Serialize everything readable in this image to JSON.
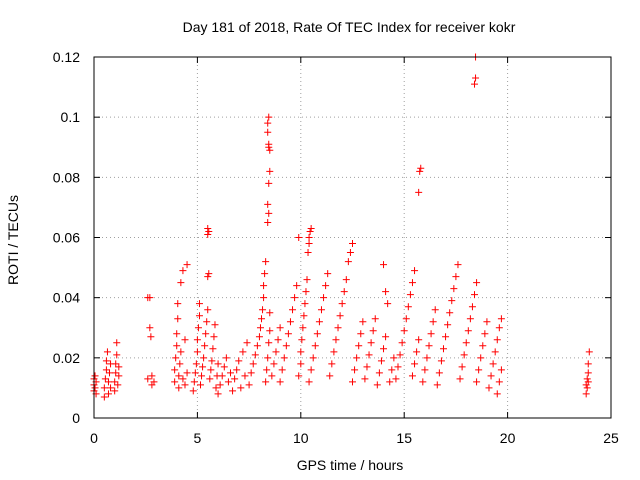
{
  "chart_data": {
    "type": "scatter",
    "title": "Day 181 of 2018, Rate Of TEC Index for receiver kokr",
    "xlabel": "GPS time / hours",
    "ylabel": "ROTI / TECUs",
    "xlim": [
      0,
      25
    ],
    "ylim": [
      0,
      0.12
    ],
    "xticks": [
      0,
      5,
      10,
      15,
      20,
      25
    ],
    "xtick_labels": [
      "0",
      "5",
      "10",
      "15",
      "20",
      "25"
    ],
    "yticks": [
      0,
      0.02,
      0.04,
      0.06,
      0.08,
      0.1,
      0.12
    ],
    "ytick_labels": [
      "0",
      "0.02",
      "0.04",
      "0.06",
      "0.08",
      "0.1",
      "0.12"
    ],
    "grid": true,
    "marker": "+",
    "colors": {
      "series": "#ff0000",
      "frame": "#000000",
      "grid": "#a0a0a0"
    },
    "series": [
      {
        "name": "ROTI",
        "points": [
          [
            0.0,
            0.009
          ],
          [
            0.0,
            0.011
          ],
          [
            0.0,
            0.013
          ],
          [
            0.05,
            0.01
          ],
          [
            0.05,
            0.014
          ],
          [
            0.1,
            0.008
          ],
          [
            0.1,
            0.012
          ],
          [
            0.5,
            0.007
          ],
          [
            0.5,
            0.01
          ],
          [
            0.55,
            0.013
          ],
          [
            0.6,
            0.016
          ],
          [
            0.6,
            0.019
          ],
          [
            0.65,
            0.022
          ],
          [
            0.7,
            0.008
          ],
          [
            0.7,
            0.012
          ],
          [
            0.75,
            0.015
          ],
          [
            0.8,
            0.01
          ],
          [
            0.8,
            0.018
          ],
          [
            1.0,
            0.009
          ],
          [
            1.0,
            0.012
          ],
          [
            1.05,
            0.015
          ],
          [
            1.05,
            0.018
          ],
          [
            1.1,
            0.021
          ],
          [
            1.1,
            0.025
          ],
          [
            1.15,
            0.011
          ],
          [
            1.2,
            0.014
          ],
          [
            1.2,
            0.017
          ],
          [
            2.6,
            0.04
          ],
          [
            2.7,
            0.04
          ],
          [
            2.7,
            0.03
          ],
          [
            2.75,
            0.027
          ],
          [
            2.8,
            0.014
          ],
          [
            2.8,
            0.011
          ],
          [
            2.9,
            0.012
          ],
          [
            2.6,
            0.013
          ],
          [
            3.9,
            0.012
          ],
          [
            3.9,
            0.016
          ],
          [
            3.95,
            0.02
          ],
          [
            4.0,
            0.024
          ],
          [
            4.0,
            0.028
          ],
          [
            4.05,
            0.033
          ],
          [
            4.05,
            0.038
          ],
          [
            4.1,
            0.01
          ],
          [
            4.1,
            0.014
          ],
          [
            4.15,
            0.018
          ],
          [
            4.2,
            0.022
          ],
          [
            4.2,
            0.045
          ],
          [
            4.3,
            0.013
          ],
          [
            4.3,
            0.049
          ],
          [
            4.4,
            0.011
          ],
          [
            4.5,
            0.051
          ],
          [
            4.4,
            0.026
          ],
          [
            4.5,
            0.015
          ],
          [
            4.8,
            0.009
          ],
          [
            4.85,
            0.012
          ],
          [
            4.9,
            0.015
          ],
          [
            4.95,
            0.018
          ],
          [
            5.0,
            0.022
          ],
          [
            5.0,
            0.026
          ],
          [
            5.05,
            0.03
          ],
          [
            5.1,
            0.034
          ],
          [
            5.1,
            0.038
          ],
          [
            5.15,
            0.011
          ],
          [
            5.2,
            0.014
          ],
          [
            5.25,
            0.017
          ],
          [
            5.3,
            0.02
          ],
          [
            5.35,
            0.024
          ],
          [
            5.4,
            0.028
          ],
          [
            5.45,
            0.032
          ],
          [
            5.5,
            0.036
          ],
          [
            5.5,
            0.047
          ],
          [
            5.55,
            0.048
          ],
          [
            5.6,
            0.013
          ],
          [
            5.65,
            0.016
          ],
          [
            5.7,
            0.019
          ],
          [
            5.75,
            0.023
          ],
          [
            5.8,
            0.027
          ],
          [
            5.85,
            0.031
          ],
          [
            5.9,
            0.01
          ],
          [
            5.95,
            0.014
          ],
          [
            6.0,
            0.018
          ],
          [
            5.5,
            0.061
          ],
          [
            5.5,
            0.063
          ],
          [
            5.55,
            0.062
          ],
          [
            6.0,
            0.008
          ],
          [
            6.1,
            0.011
          ],
          [
            6.2,
            0.014
          ],
          [
            6.3,
            0.017
          ],
          [
            6.4,
            0.02
          ],
          [
            6.5,
            0.012
          ],
          [
            6.6,
            0.015
          ],
          [
            6.7,
            0.009
          ],
          [
            6.8,
            0.013
          ],
          [
            6.9,
            0.016
          ],
          [
            7.0,
            0.019
          ],
          [
            7.1,
            0.01
          ],
          [
            7.2,
            0.022
          ],
          [
            7.3,
            0.014
          ],
          [
            7.4,
            0.025
          ],
          [
            7.5,
            0.011
          ],
          [
            7.6,
            0.015
          ],
          [
            7.7,
            0.018
          ],
          [
            7.8,
            0.021
          ],
          [
            7.9,
            0.024
          ],
          [
            8.0,
            0.027
          ],
          [
            8.05,
            0.03
          ],
          [
            8.1,
            0.033
          ],
          [
            8.15,
            0.036
          ],
          [
            8.2,
            0.04
          ],
          [
            8.2,
            0.044
          ],
          [
            8.25,
            0.048
          ],
          [
            8.3,
            0.052
          ],
          [
            8.3,
            0.012
          ],
          [
            8.35,
            0.016
          ],
          [
            8.4,
            0.02
          ],
          [
            8.45,
            0.025
          ],
          [
            8.5,
            0.029
          ],
          [
            8.5,
            0.035
          ],
          [
            8.4,
            0.065
          ],
          [
            8.45,
            0.068
          ],
          [
            8.4,
            0.071
          ],
          [
            8.45,
            0.078
          ],
          [
            8.5,
            0.082
          ],
          [
            8.5,
            0.089
          ],
          [
            8.45,
            0.09
          ],
          [
            8.45,
            0.091
          ],
          [
            8.4,
            0.095
          ],
          [
            8.4,
            0.098
          ],
          [
            8.45,
            0.1
          ],
          [
            8.6,
            0.014
          ],
          [
            8.7,
            0.018
          ],
          [
            8.8,
            0.022
          ],
          [
            8.9,
            0.026
          ],
          [
            9.0,
            0.03
          ],
          [
            9.0,
            0.012
          ],
          [
            9.1,
            0.016
          ],
          [
            9.2,
            0.02
          ],
          [
            9.3,
            0.024
          ],
          [
            9.4,
            0.028
          ],
          [
            9.5,
            0.032
          ],
          [
            9.6,
            0.036
          ],
          [
            9.7,
            0.04
          ],
          [
            9.8,
            0.044
          ],
          [
            9.9,
            0.06
          ],
          [
            9.9,
            0.014
          ],
          [
            10.0,
            0.018
          ],
          [
            10.0,
            0.022
          ],
          [
            10.05,
            0.026
          ],
          [
            10.1,
            0.03
          ],
          [
            10.15,
            0.034
          ],
          [
            10.2,
            0.038
          ],
          [
            10.25,
            0.042
          ],
          [
            10.3,
            0.046
          ],
          [
            10.35,
            0.055
          ],
          [
            10.4,
            0.058
          ],
          [
            10.4,
            0.06
          ],
          [
            10.45,
            0.062
          ],
          [
            10.5,
            0.063
          ],
          [
            10.4,
            0.012
          ],
          [
            10.5,
            0.016
          ],
          [
            10.6,
            0.02
          ],
          [
            10.7,
            0.024
          ],
          [
            10.8,
            0.028
          ],
          [
            10.9,
            0.032
          ],
          [
            11.0,
            0.036
          ],
          [
            11.1,
            0.04
          ],
          [
            11.2,
            0.044
          ],
          [
            11.3,
            0.048
          ],
          [
            11.4,
            0.014
          ],
          [
            11.5,
            0.018
          ],
          [
            11.6,
            0.022
          ],
          [
            11.7,
            0.026
          ],
          [
            11.8,
            0.03
          ],
          [
            11.9,
            0.034
          ],
          [
            12.0,
            0.038
          ],
          [
            12.1,
            0.042
          ],
          [
            12.2,
            0.046
          ],
          [
            12.3,
            0.052
          ],
          [
            12.4,
            0.055
          ],
          [
            12.5,
            0.058
          ],
          [
            12.5,
            0.012
          ],
          [
            12.6,
            0.016
          ],
          [
            12.7,
            0.02
          ],
          [
            12.8,
            0.024
          ],
          [
            12.9,
            0.028
          ],
          [
            13.0,
            0.032
          ],
          [
            13.1,
            0.013
          ],
          [
            13.2,
            0.017
          ],
          [
            13.3,
            0.021
          ],
          [
            13.4,
            0.025
          ],
          [
            13.5,
            0.029
          ],
          [
            13.6,
            0.033
          ],
          [
            13.7,
            0.011
          ],
          [
            13.8,
            0.015
          ],
          [
            13.9,
            0.019
          ],
          [
            14.0,
            0.023
          ],
          [
            14.1,
            0.027
          ],
          [
            14.0,
            0.051
          ],
          [
            14.1,
            0.042
          ],
          [
            14.2,
            0.038
          ],
          [
            14.3,
            0.012
          ],
          [
            14.4,
            0.016
          ],
          [
            14.5,
            0.02
          ],
          [
            14.6,
            0.013
          ],
          [
            14.7,
            0.017
          ],
          [
            14.8,
            0.021
          ],
          [
            14.9,
            0.025
          ],
          [
            15.0,
            0.029
          ],
          [
            15.1,
            0.033
          ],
          [
            15.2,
            0.037
          ],
          [
            15.3,
            0.041
          ],
          [
            15.4,
            0.045
          ],
          [
            15.5,
            0.049
          ],
          [
            15.4,
            0.014
          ],
          [
            15.5,
            0.018
          ],
          [
            15.6,
            0.022
          ],
          [
            15.7,
            0.026
          ],
          [
            15.7,
            0.075
          ],
          [
            15.75,
            0.082
          ],
          [
            15.8,
            0.083
          ],
          [
            15.9,
            0.012
          ],
          [
            16.0,
            0.016
          ],
          [
            16.1,
            0.02
          ],
          [
            16.2,
            0.024
          ],
          [
            16.3,
            0.028
          ],
          [
            16.4,
            0.032
          ],
          [
            16.5,
            0.036
          ],
          [
            16.6,
            0.011
          ],
          [
            16.7,
            0.015
          ],
          [
            16.8,
            0.019
          ],
          [
            16.9,
            0.023
          ],
          [
            17.0,
            0.027
          ],
          [
            17.1,
            0.031
          ],
          [
            17.2,
            0.035
          ],
          [
            17.3,
            0.039
          ],
          [
            17.4,
            0.043
          ],
          [
            17.5,
            0.047
          ],
          [
            17.6,
            0.051
          ],
          [
            17.7,
            0.013
          ],
          [
            17.8,
            0.017
          ],
          [
            17.9,
            0.021
          ],
          [
            18.0,
            0.025
          ],
          [
            18.1,
            0.029
          ],
          [
            18.2,
            0.033
          ],
          [
            18.3,
            0.037
          ],
          [
            18.4,
            0.041
          ],
          [
            18.5,
            0.045
          ],
          [
            18.5,
            0.012
          ],
          [
            18.6,
            0.016
          ],
          [
            18.7,
            0.02
          ],
          [
            18.8,
            0.024
          ],
          [
            18.9,
            0.028
          ],
          [
            19.0,
            0.032
          ],
          [
            18.4,
            0.111
          ],
          [
            18.45,
            0.113
          ],
          [
            18.45,
            0.12
          ],
          [
            19.1,
            0.01
          ],
          [
            19.2,
            0.014
          ],
          [
            19.3,
            0.018
          ],
          [
            19.4,
            0.022
          ],
          [
            19.5,
            0.026
          ],
          [
            19.6,
            0.03
          ],
          [
            19.7,
            0.033
          ],
          [
            19.6,
            0.012
          ],
          [
            19.7,
            0.016
          ],
          [
            19.5,
            0.008
          ],
          [
            23.8,
            0.008
          ],
          [
            23.8,
            0.011
          ],
          [
            23.85,
            0.013
          ],
          [
            23.9,
            0.015
          ],
          [
            23.9,
            0.018
          ],
          [
            23.95,
            0.022
          ],
          [
            23.85,
            0.01
          ],
          [
            23.9,
            0.012
          ]
        ]
      }
    ]
  }
}
